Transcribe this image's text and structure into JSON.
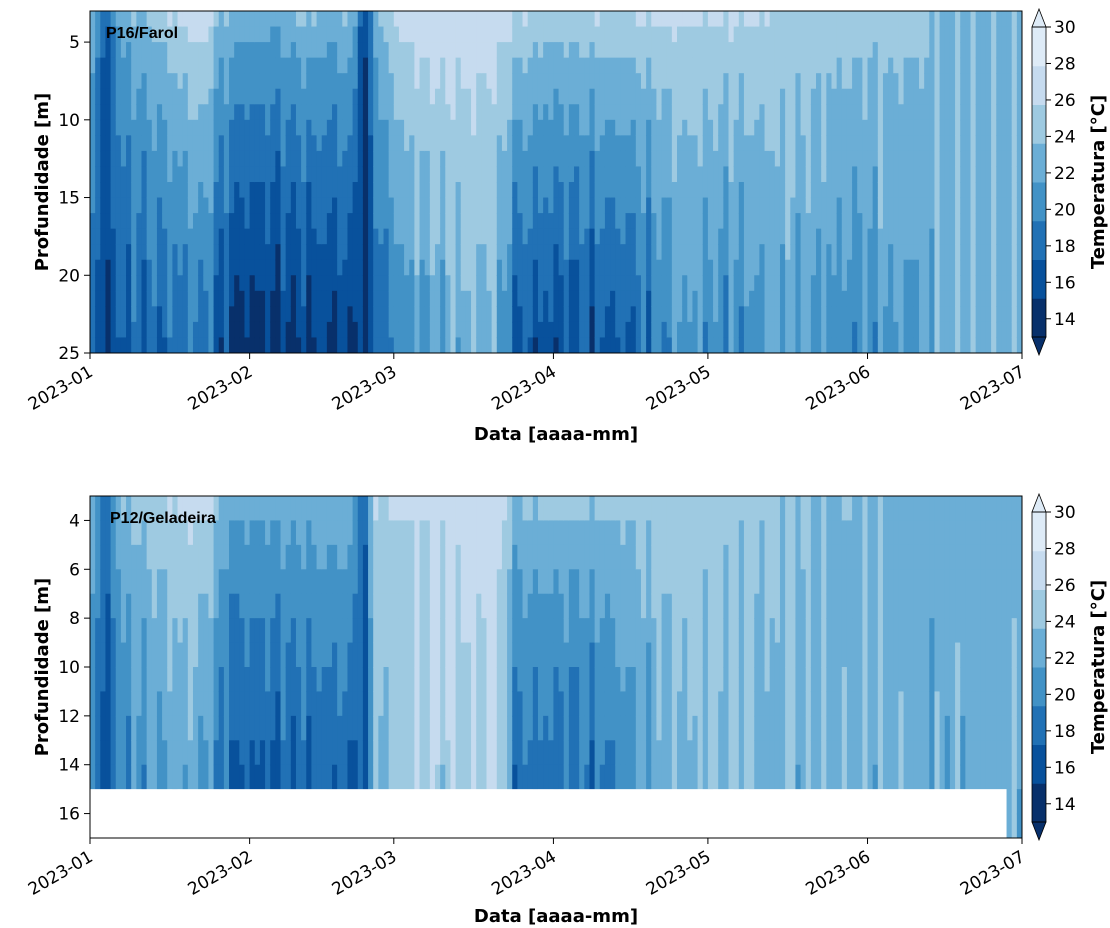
{
  "chart_data": [
    {
      "type": "heatmap",
      "panel_label": "P16/Farol",
      "xlabel": "Data [aaaa-mm]",
      "ylabel": "Profundidade [m]",
      "x_range": [
        "2023-01-01",
        "2023-07-01"
      ],
      "x_ticks": [
        "2023-01",
        "2023-02",
        "2023-03",
        "2023-04",
        "2023-05",
        "2023-06",
        "2023-07"
      ],
      "ylim": [
        25,
        3
      ],
      "y_ticks": [
        5,
        10,
        15,
        20,
        25
      ],
      "colorbar": {
        "label": "Temperatura [°C]",
        "range": [
          13,
          30
        ],
        "ticks": [
          14,
          16,
          18,
          20,
          22,
          24,
          26,
          28,
          30
        ],
        "extend": "both"
      },
      "profile": [
        {
          "date": "2023-01-01",
          "surface": 24.0,
          "bottom": 17.5
        },
        {
          "date": "2023-01-04",
          "surface": 16.5,
          "bottom": 15.0
        },
        {
          "date": "2023-01-07",
          "surface": 22.5,
          "bottom": 17.0
        },
        {
          "date": "2023-01-12",
          "surface": 24.0,
          "bottom": 17.5
        },
        {
          "date": "2023-01-18",
          "surface": 26.0,
          "bottom": 18.0
        },
        {
          "date": "2023-01-23",
          "surface": 27.5,
          "bottom": 19.0
        },
        {
          "date": "2023-01-26",
          "surface": 24.0,
          "bottom": 16.5
        },
        {
          "date": "2023-01-30",
          "surface": 23.0,
          "bottom": 14.0
        },
        {
          "date": "2023-02-06",
          "surface": 22.5,
          "bottom": 14.5
        },
        {
          "date": "2023-02-12",
          "surface": 24.0,
          "bottom": 15.0
        },
        {
          "date": "2023-02-17",
          "surface": 23.0,
          "bottom": 15.0
        },
        {
          "date": "2023-02-21",
          "surface": 24.0,
          "bottom": 15.5
        },
        {
          "date": "2023-02-23",
          "surface": 14.5,
          "bottom": 14.0
        },
        {
          "date": "2023-02-26",
          "surface": 24.0,
          "bottom": 17.5
        },
        {
          "date": "2023-03-03",
          "surface": 27.0,
          "bottom": 20.5
        },
        {
          "date": "2023-03-10",
          "surface": 27.5,
          "bottom": 22.0
        },
        {
          "date": "2023-03-17",
          "surface": 27.0,
          "bottom": 23.5
        },
        {
          "date": "2023-03-22",
          "surface": 27.0,
          "bottom": 22.0
        },
        {
          "date": "2023-03-24",
          "surface": 26.0,
          "bottom": 17.0
        },
        {
          "date": "2023-04-01",
          "surface": 25.0,
          "bottom": 16.0
        },
        {
          "date": "2023-04-08",
          "surface": 25.5,
          "bottom": 16.5
        },
        {
          "date": "2023-04-15",
          "surface": 25.5,
          "bottom": 17.0
        },
        {
          "date": "2023-04-21",
          "surface": 26.0,
          "bottom": 19.0
        },
        {
          "date": "2023-04-26",
          "surface": 26.0,
          "bottom": 21.5
        },
        {
          "date": "2023-05-03",
          "surface": 26.0,
          "bottom": 20.0
        },
        {
          "date": "2023-05-10",
          "surface": 26.0,
          "bottom": 20.5
        },
        {
          "date": "2023-05-15",
          "surface": 25.5,
          "bottom": 22.0
        },
        {
          "date": "2023-05-22",
          "surface": 25.0,
          "bottom": 21.5
        },
        {
          "date": "2023-05-29",
          "surface": 25.0,
          "bottom": 20.0
        },
        {
          "date": "2023-06-05",
          "surface": 24.5,
          "bottom": 21.5
        },
        {
          "date": "2023-06-11",
          "surface": 24.5,
          "bottom": 21.0
        },
        {
          "date": "2023-06-14",
          "surface": 23.5,
          "bottom": 23.0
        },
        {
          "date": "2023-06-28",
          "surface": 23.5,
          "bottom": 23.0
        },
        {
          "date": "2023-07-01",
          "surface": 23.0,
          "bottom": 23.0
        }
      ],
      "no_data": []
    },
    {
      "type": "heatmap",
      "panel_label": "P12/Geladeira",
      "xlabel": "Data [aaaa-mm]",
      "ylabel": "Profundidade [m]",
      "x_range": [
        "2023-01-01",
        "2023-07-01"
      ],
      "x_ticks": [
        "2023-01",
        "2023-02",
        "2023-03",
        "2023-04",
        "2023-05",
        "2023-06",
        "2023-07"
      ],
      "ylim": [
        17,
        3
      ],
      "y_ticks": [
        4,
        6,
        8,
        10,
        12,
        14,
        16
      ],
      "colorbar": {
        "label": "Temperatura [°C]",
        "range": [
          13,
          30
        ],
        "ticks": [
          14,
          16,
          18,
          20,
          22,
          24,
          26,
          28,
          30
        ],
        "extend": "both"
      },
      "profile": [
        {
          "date": "2023-01-01",
          "surface": 24.0,
          "bottom": 19.0
        },
        {
          "date": "2023-01-04",
          "surface": 17.0,
          "bottom": 16.5
        },
        {
          "date": "2023-01-07",
          "surface": 23.5,
          "bottom": 19.5
        },
        {
          "date": "2023-01-14",
          "surface": 25.0,
          "bottom": 21.0
        },
        {
          "date": "2023-01-21",
          "surface": 26.5,
          "bottom": 22.0
        },
        {
          "date": "2023-01-25",
          "surface": 25.5,
          "bottom": 19.5
        },
        {
          "date": "2023-01-28",
          "surface": 22.0,
          "bottom": 16.5
        },
        {
          "date": "2023-02-06",
          "surface": 22.5,
          "bottom": 16.5
        },
        {
          "date": "2023-02-14",
          "surface": 23.0,
          "bottom": 17.0
        },
        {
          "date": "2023-02-21",
          "surface": 23.5,
          "bottom": 17.0
        },
        {
          "date": "2023-02-23",
          "surface": 15.5,
          "bottom": 15.0
        },
        {
          "date": "2023-02-25",
          "surface": 25.5,
          "bottom": 22.5
        },
        {
          "date": "2023-03-05",
          "surface": 26.0,
          "bottom": 25.0
        },
        {
          "date": "2023-03-14",
          "surface": 26.5,
          "bottom": 25.0
        },
        {
          "date": "2023-03-22",
          "surface": 27.0,
          "bottom": 25.5
        },
        {
          "date": "2023-03-24",
          "surface": 23.5,
          "bottom": 18.0
        },
        {
          "date": "2023-04-02",
          "surface": 24.0,
          "bottom": 17.5
        },
        {
          "date": "2023-04-10",
          "surface": 24.0,
          "bottom": 18.0
        },
        {
          "date": "2023-04-17",
          "surface": 24.5,
          "bottom": 20.5
        },
        {
          "date": "2023-04-24",
          "surface": 25.0,
          "bottom": 23.0
        },
        {
          "date": "2023-05-02",
          "surface": 24.5,
          "bottom": 23.5
        },
        {
          "date": "2023-05-12",
          "surface": 24.0,
          "bottom": 23.0
        },
        {
          "date": "2023-05-25",
          "surface": 23.5,
          "bottom": 23.0
        },
        {
          "date": "2023-06-05",
          "surface": 23.5,
          "bottom": 23.0
        },
        {
          "date": "2023-06-13",
          "surface": 22.5,
          "bottom": 22.5
        },
        {
          "date": "2023-06-30",
          "surface": 22.5,
          "bottom": 22.5
        },
        {
          "date": "2023-07-01",
          "surface": 22.5,
          "bottom": 22.5
        }
      ],
      "no_data": [
        {
          "depth_from": 15,
          "depth_to": 17,
          "date_from": "2023-01-01",
          "date_to": "2023-06-28"
        }
      ]
    }
  ],
  "colors": {
    "scale": [
      "#08306b",
      "#08519c",
      "#2171b5",
      "#4292c6",
      "#6baed6",
      "#9ecae1",
      "#c6dbef",
      "#deebf7"
    ],
    "axis": "#000000",
    "no_data": "#ffffff"
  }
}
